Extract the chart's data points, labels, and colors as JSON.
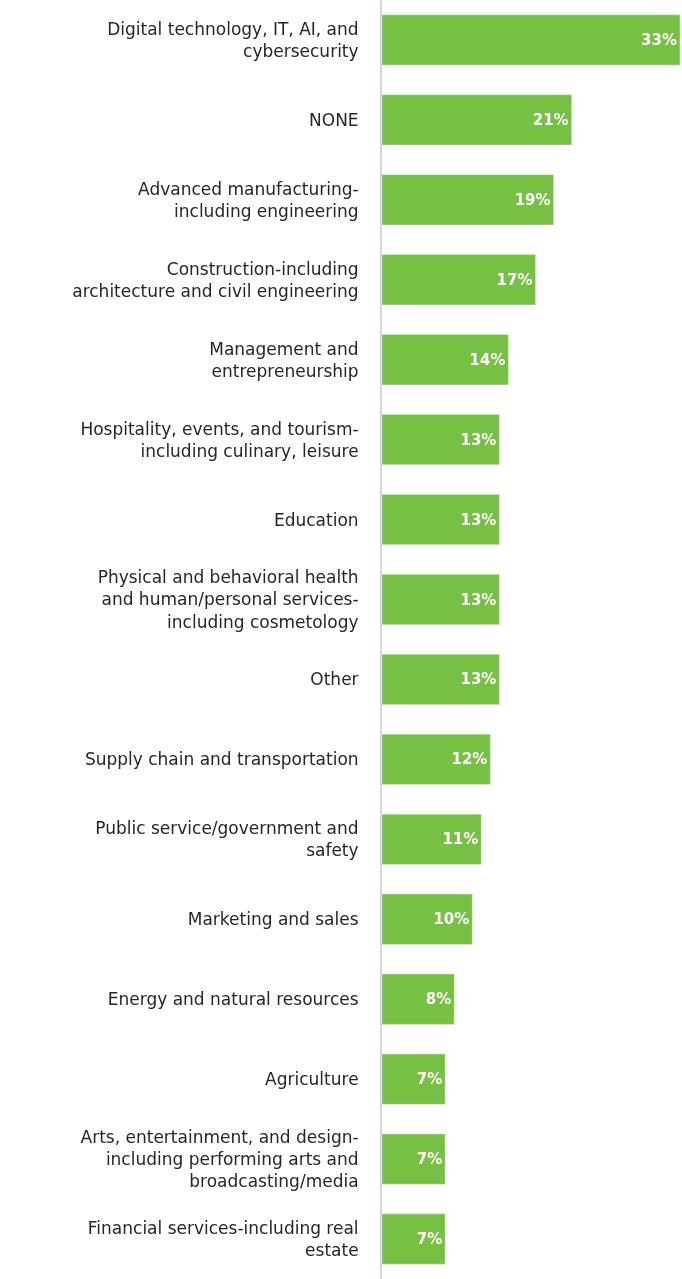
{
  "chart_data": {
    "type": "bar",
    "orientation": "horizontal",
    "color": "#76c043",
    "data_labels": true,
    "categories": [
      "Digital technology, IT, AI, and\ncybersecurity",
      "NONE",
      "Advanced manufacturing-\nincluding engineering",
      "Construction-including\narchitecture and civil engineering",
      "Management and\nentrepreneurship",
      "Hospitality, events, and tourism-\nincluding culinary, leisure",
      "Education",
      "Physical and behavioral health\nand human/personal services-\nincluding cosmetology",
      "Other",
      "Supply chain and transportation",
      "Public service/government and\nsafety",
      "Marketing and sales",
      "Energy and natural resources",
      "Agriculture",
      "Arts, entertainment, and design-\nincluding performing arts and\nbroadcasting/media",
      "Financial services-including real\nestate"
    ],
    "values": [
      33,
      21,
      19,
      17,
      14,
      13,
      13,
      13,
      13,
      12,
      11,
      10,
      8,
      7,
      7,
      7
    ],
    "value_labels": [
      "33%",
      "21%",
      "19%",
      "17%",
      "14%",
      "13%",
      "13%",
      "13%",
      "13%",
      "12%",
      "11%",
      "10%",
      "8%",
      "7%",
      "7%",
      "7%"
    ]
  }
}
